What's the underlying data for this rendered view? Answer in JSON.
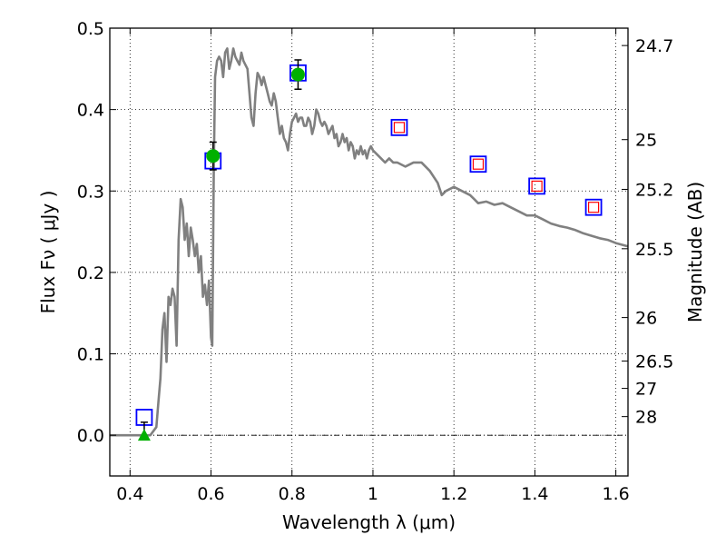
{
  "chart_data": {
    "type": "scatter",
    "xlabel": "Wavelength  λ (μm)",
    "ylabel": "Flux  Fν  ( μJy )",
    "y2label": "Magnitude (AB)",
    "xlim": [
      0.35,
      1.63
    ],
    "ylim": [
      -0.05,
      0.5
    ],
    "x_ticks": [
      {
        "value": 0.4,
        "label": "0.4"
      },
      {
        "value": 0.6,
        "label": "0.6"
      },
      {
        "value": 0.8,
        "label": "0.8"
      },
      {
        "value": 1.0,
        "label": "1"
      },
      {
        "value": 1.2,
        "label": "1.2"
      },
      {
        "value": 1.4,
        "label": "1.4"
      },
      {
        "value": 1.6,
        "label": "1.6"
      }
    ],
    "y_ticks": [
      {
        "value": 0.0,
        "label": "0.0"
      },
      {
        "value": 0.1,
        "label": "0.1"
      },
      {
        "value": 0.2,
        "label": "0.2"
      },
      {
        "value": 0.3,
        "label": "0.3"
      },
      {
        "value": 0.4,
        "label": "0.4"
      },
      {
        "value": 0.5,
        "label": "0.5"
      }
    ],
    "mag_ticks": [
      {
        "mag": 24.7,
        "label": "24.7"
      },
      {
        "mag": 25.0,
        "label": "25"
      },
      {
        "mag": 25.2,
        "label": "25.2"
      },
      {
        "mag": 25.5,
        "label": "25.5"
      },
      {
        "mag": 26.0,
        "label": "26"
      },
      {
        "mag": 26.5,
        "label": "26.5"
      },
      {
        "mag": 27.0,
        "label": "27"
      },
      {
        "mag": 28.0,
        "label": "28"
      }
    ],
    "grid": true,
    "series": [
      {
        "kind": "line",
        "color": "#808080",
        "x": [
          0.35,
          0.43,
          0.45,
          0.465,
          0.47,
          0.475,
          0.48,
          0.485,
          0.49,
          0.495,
          0.5,
          0.505,
          0.51,
          0.515,
          0.52,
          0.525,
          0.53,
          0.535,
          0.54,
          0.545,
          0.55,
          0.555,
          0.56,
          0.565,
          0.57,
          0.575,
          0.58,
          0.585,
          0.59,
          0.595,
          0.6,
          0.603,
          0.607,
          0.61,
          0.615,
          0.62,
          0.625,
          0.63,
          0.635,
          0.64,
          0.645,
          0.65,
          0.655,
          0.66,
          0.665,
          0.67,
          0.675,
          0.68,
          0.685,
          0.69,
          0.695,
          0.7,
          0.705,
          0.71,
          0.715,
          0.72,
          0.725,
          0.73,
          0.735,
          0.74,
          0.745,
          0.75,
          0.755,
          0.76,
          0.765,
          0.77,
          0.775,
          0.78,
          0.785,
          0.79,
          0.795,
          0.8,
          0.805,
          0.81,
          0.815,
          0.82,
          0.825,
          0.83,
          0.835,
          0.84,
          0.845,
          0.85,
          0.855,
          0.86,
          0.865,
          0.87,
          0.875,
          0.88,
          0.885,
          0.89,
          0.895,
          0.9,
          0.905,
          0.91,
          0.915,
          0.92,
          0.925,
          0.93,
          0.935,
          0.94,
          0.945,
          0.95,
          0.955,
          0.96,
          0.965,
          0.97,
          0.975,
          0.98,
          0.985,
          0.99,
          0.995,
          1.0,
          1.01,
          1.02,
          1.03,
          1.04,
          1.05,
          1.06,
          1.08,
          1.1,
          1.12,
          1.14,
          1.16,
          1.17,
          1.18,
          1.2,
          1.22,
          1.24,
          1.25,
          1.26,
          1.28,
          1.3,
          1.32,
          1.34,
          1.36,
          1.38,
          1.4,
          1.42,
          1.44,
          1.46,
          1.48,
          1.5,
          1.52,
          1.54,
          1.56,
          1.58,
          1.6,
          1.63
        ],
        "y": [
          0.0,
          0.0,
          0.0,
          0.01,
          0.04,
          0.07,
          0.13,
          0.15,
          0.09,
          0.17,
          0.16,
          0.18,
          0.17,
          0.11,
          0.24,
          0.29,
          0.28,
          0.24,
          0.26,
          0.22,
          0.255,
          0.24,
          0.22,
          0.235,
          0.2,
          0.22,
          0.17,
          0.185,
          0.16,
          0.19,
          0.12,
          0.11,
          0.33,
          0.44,
          0.46,
          0.465,
          0.46,
          0.44,
          0.47,
          0.475,
          0.45,
          0.46,
          0.475,
          0.465,
          0.46,
          0.455,
          0.47,
          0.46,
          0.455,
          0.45,
          0.42,
          0.39,
          0.38,
          0.42,
          0.445,
          0.44,
          0.43,
          0.44,
          0.43,
          0.42,
          0.41,
          0.405,
          0.42,
          0.41,
          0.39,
          0.37,
          0.38,
          0.365,
          0.36,
          0.35,
          0.37,
          0.385,
          0.39,
          0.395,
          0.385,
          0.39,
          0.39,
          0.38,
          0.38,
          0.39,
          0.385,
          0.37,
          0.38,
          0.4,
          0.395,
          0.385,
          0.38,
          0.385,
          0.38,
          0.37,
          0.375,
          0.38,
          0.365,
          0.37,
          0.355,
          0.36,
          0.37,
          0.36,
          0.365,
          0.35,
          0.36,
          0.355,
          0.34,
          0.35,
          0.345,
          0.355,
          0.345,
          0.35,
          0.34,
          0.35,
          0.355,
          0.35,
          0.345,
          0.34,
          0.335,
          0.34,
          0.335,
          0.335,
          0.33,
          0.335,
          0.335,
          0.325,
          0.31,
          0.295,
          0.3,
          0.305,
          0.3,
          0.295,
          0.29,
          0.285,
          0.287,
          0.283,
          0.285,
          0.28,
          0.275,
          0.27,
          0.27,
          0.265,
          0.26,
          0.257,
          0.255,
          0.252,
          0.248,
          0.245,
          0.242,
          0.24,
          0.236,
          0.232
        ]
      },
      {
        "kind": "markers",
        "marker": "open-square",
        "color": "#0000ff",
        "x": [
          0.435,
          0.605,
          0.815,
          1.065,
          1.26,
          1.405,
          1.545
        ],
        "y": [
          0.022,
          0.337,
          0.445,
          0.378,
          0.333,
          0.306,
          0.28
        ]
      },
      {
        "kind": "markers",
        "marker": "open-square-small",
        "color": "#ff0000",
        "x": [
          1.065,
          1.26,
          1.405,
          1.545
        ],
        "y": [
          0.378,
          0.333,
          0.306,
          0.28
        ]
      },
      {
        "kind": "markers",
        "marker": "filled-circle",
        "color": "#00b000",
        "x": [
          0.605,
          0.815
        ],
        "y": [
          0.343,
          0.443
        ],
        "yerr": [
          0.017,
          0.018
        ]
      },
      {
        "kind": "markers",
        "marker": "filled-triangle",
        "color": "#00b000",
        "x": [
          0.435
        ],
        "y": [
          0.0
        ],
        "yerr_up": [
          0.016
        ]
      }
    ]
  }
}
